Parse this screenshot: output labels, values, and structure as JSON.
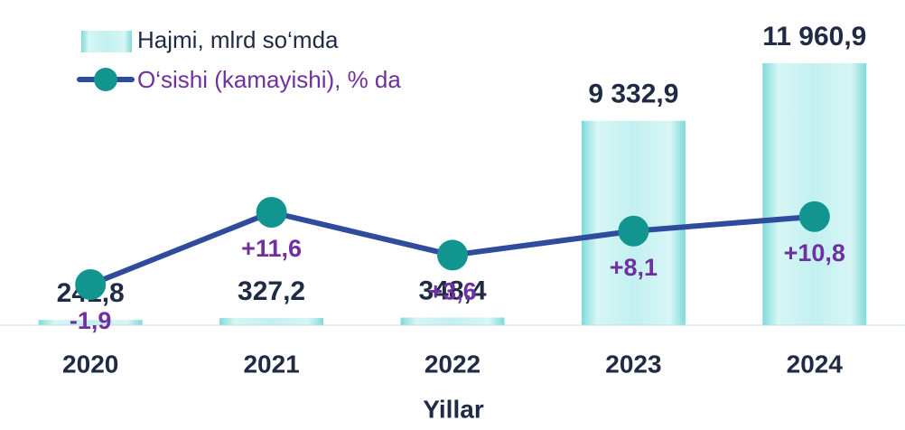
{
  "chart_data": {
    "type": "bar-line",
    "x_label": "Yillar",
    "categories": [
      "2020",
      "2021",
      "2022",
      "2023",
      "2024"
    ],
    "series": [
      {
        "name": "Hajmi, mlrd so‘mda",
        "type": "bar",
        "color": "#a9e9e9",
        "values": [
          241.8,
          327.2,
          348.4,
          9332.9,
          11960.9
        ],
        "value_labels": [
          "241,8",
          "327,2",
          "348,4",
          "9 332,9",
          "11 960,9"
        ]
      },
      {
        "name": "O‘sishi (kamayishi), % da",
        "type": "line",
        "color": "#2f4b9c",
        "marker_color": "#13958f",
        "label_color": "#7030a0",
        "values": [
          -1.9,
          11.6,
          3.6,
          8.1,
          10.8
        ],
        "value_labels": [
          "-1,9",
          "+11,6",
          "+3,6",
          "+8,1",
          "+10,8"
        ]
      }
    ]
  }
}
